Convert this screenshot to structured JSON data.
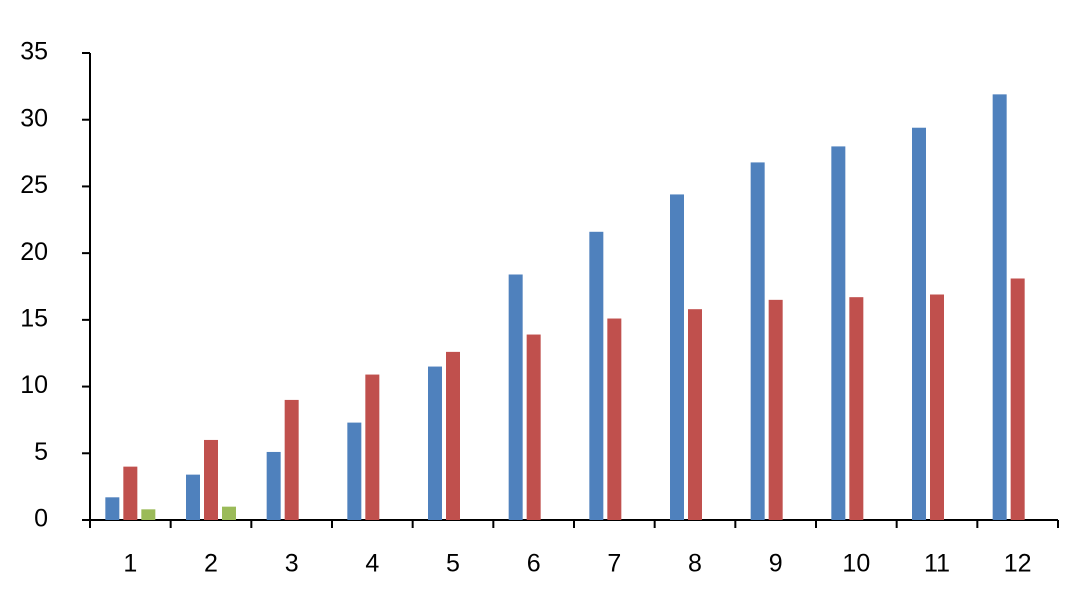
{
  "chart_data": {
    "type": "bar",
    "categories": [
      "1",
      "2",
      "3",
      "4",
      "5",
      "6",
      "7",
      "8",
      "9",
      "10",
      "11",
      "12"
    ],
    "series": [
      {
        "color": "#4f81bd",
        "values": [
          1.7,
          3.4,
          5.1,
          7.3,
          11.5,
          18.4,
          21.6,
          24.4,
          26.8,
          28.0,
          29.4,
          31.9
        ]
      },
      {
        "color": "#c0504d",
        "values": [
          4.0,
          6.0,
          9.0,
          10.9,
          12.6,
          13.9,
          15.1,
          15.8,
          16.5,
          16.7,
          16.9,
          18.1
        ]
      },
      {
        "color": "#9bbb59",
        "values": [
          0.8,
          1.0,
          null,
          null,
          null,
          null,
          null,
          null,
          null,
          null,
          null,
          null
        ]
      }
    ],
    "ylim": [
      0,
      35
    ],
    "yticks": [
      0,
      5,
      10,
      15,
      20,
      25,
      30,
      35
    ],
    "grid": false
  }
}
